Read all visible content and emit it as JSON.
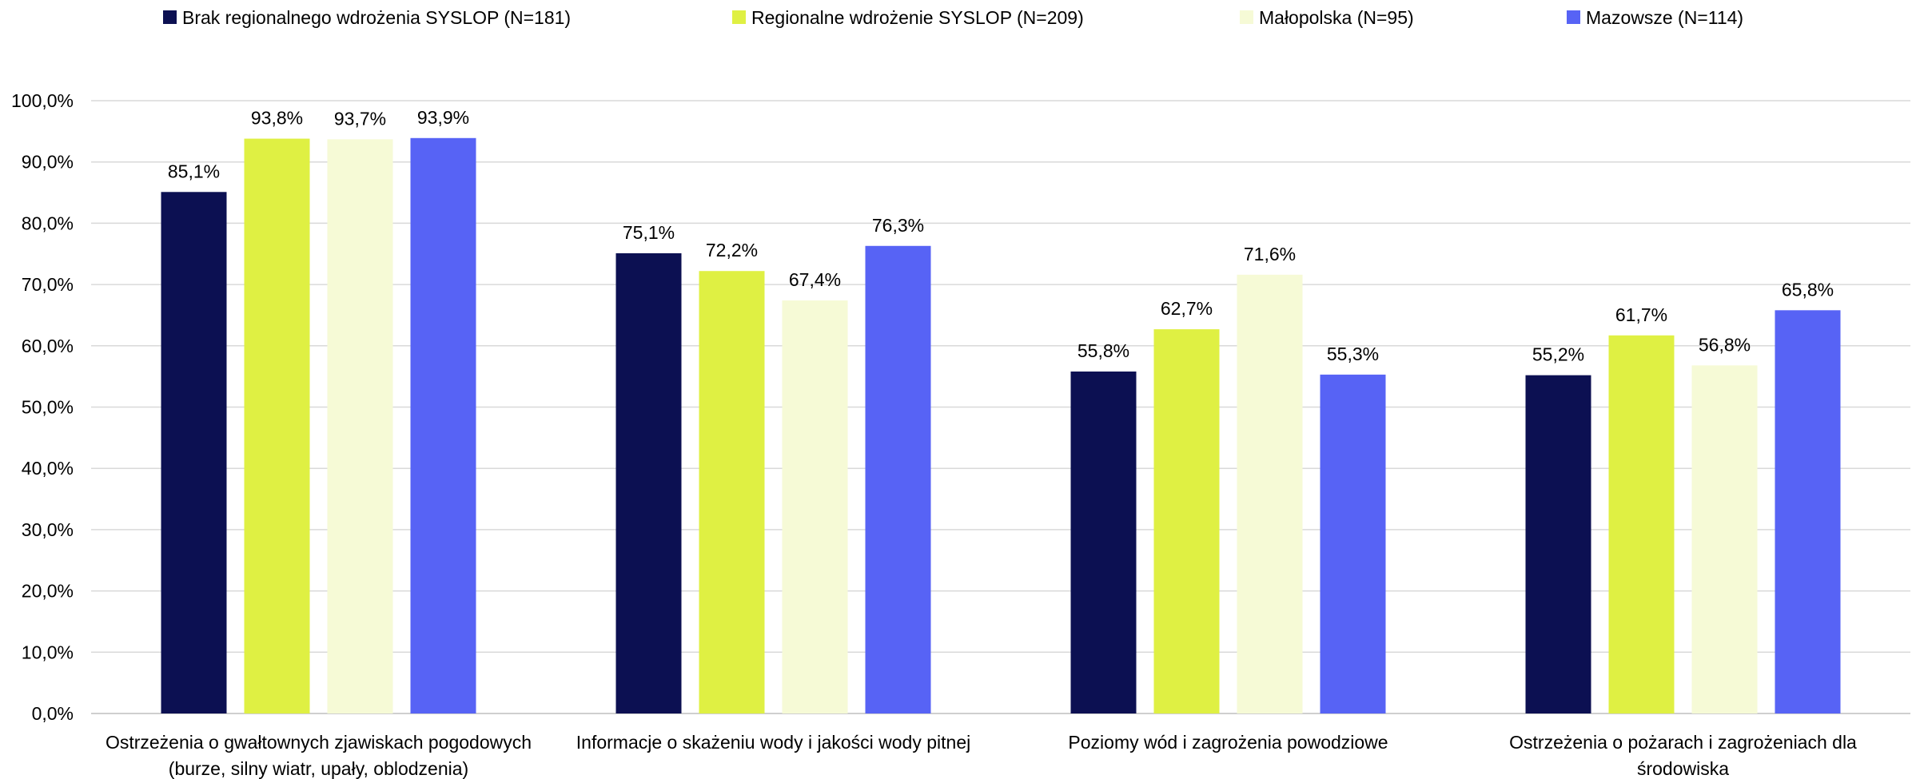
{
  "chart_data": {
    "type": "bar",
    "categories": [
      [
        "Ostrzeżenia o gwałtownych zjawiskach pogodowych",
        "(burze, silny wiatr, upały, oblodzenia)"
      ],
      [
        "Informacje o skażeniu wody i jakości wody pitnej"
      ],
      [
        "Poziomy wód i zagrożenia powodziowe"
      ],
      [
        "Ostrzeżenia o pożarach i zagrożeniach dla",
        "środowiska"
      ]
    ],
    "series": [
      {
        "name": "Brak regionalnego wdrożenia SYSLOP (N=181)",
        "color": "#0c1052",
        "values": [
          85.1,
          75.1,
          55.8,
          55.2
        ],
        "labels": [
          "85,1%",
          "75,1%",
          "55,8%",
          "55,2%"
        ]
      },
      {
        "name": "Regionalne wdrożenie SYSLOP (N=209)",
        "color": "#dff043",
        "values": [
          93.8,
          72.2,
          62.7,
          61.7
        ],
        "labels": [
          "93,8%",
          "72,2%",
          "62,7%",
          "61,7%"
        ]
      },
      {
        "name": "Małopolska (N=95)",
        "color": "#f6fad6",
        "values": [
          93.7,
          67.4,
          71.6,
          56.8
        ],
        "labels": [
          "93,7%",
          "67,4%",
          "71,6%",
          "56,8%"
        ]
      },
      {
        "name": "Mazowsze (N=114)",
        "color": "#5763f5",
        "values": [
          93.9,
          76.3,
          55.3,
          65.8
        ],
        "labels": [
          "93,9%",
          "76,3%",
          "55,3%",
          "65,8%"
        ]
      }
    ],
    "ylim": [
      0,
      100
    ],
    "yticks": [
      0,
      10,
      20,
      30,
      40,
      50,
      60,
      70,
      80,
      90,
      100
    ],
    "ytick_labels": [
      "0,0%",
      "10,0%",
      "20,0%",
      "30,0%",
      "40,0%",
      "50,0%",
      "60,0%",
      "70,0%",
      "80,0%",
      "90,0%",
      "100,0%"
    ],
    "grid": true,
    "legend_position": "top",
    "gridline_color": "#d9d9d9",
    "axis_color": "#bfbfbf"
  }
}
